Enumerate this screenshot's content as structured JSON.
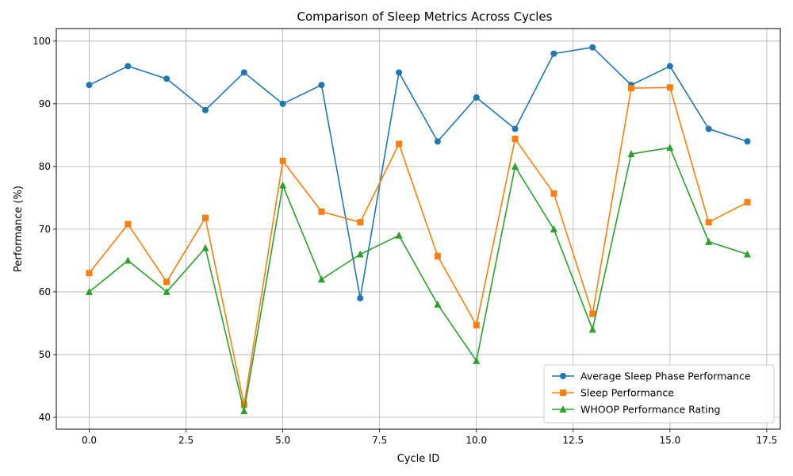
{
  "chart_data": {
    "type": "line",
    "title": "Comparison of Sleep Metrics Across Cycles",
    "xlabel": "Cycle ID",
    "ylabel": "Performance (%)",
    "xlim": [
      -0.85,
      17.85
    ],
    "ylim": [
      38.1,
      102.0
    ],
    "xticks": [
      0.0,
      2.5,
      5.0,
      7.5,
      10.0,
      12.5,
      15.0,
      17.5
    ],
    "xtick_labels": [
      "0.0",
      "2.5",
      "5.0",
      "7.5",
      "10.0",
      "12.5",
      "15.0",
      "17.5"
    ],
    "yticks": [
      40,
      50,
      60,
      70,
      80,
      90,
      100
    ],
    "ytick_labels": [
      "40",
      "50",
      "60",
      "70",
      "80",
      "90",
      "100"
    ],
    "grid": true,
    "legend_position": "bottom-right",
    "x": [
      0,
      1,
      2,
      3,
      4,
      5,
      6,
      7,
      8,
      9,
      10,
      11,
      12,
      13,
      14,
      15,
      16,
      17
    ],
    "series": [
      {
        "name": "Average Sleep Phase Performance",
        "color": "#1f77b4",
        "marker": "circle",
        "values": [
          93,
          96,
          94,
          89,
          95,
          90,
          93,
          59,
          95,
          84,
          91,
          86,
          98,
          99,
          93,
          96,
          86,
          84
        ]
      },
      {
        "name": "Sleep Performance",
        "color": "#ff7f0e",
        "marker": "square",
        "values": [
          63.0,
          70.8,
          61.6,
          71.8,
          42.0,
          80.9,
          72.8,
          71.1,
          83.6,
          65.7,
          54.7,
          84.4,
          75.7,
          56.5,
          92.5,
          92.6,
          71.1,
          74.3
        ]
      },
      {
        "name": "WHOOP Performance Rating",
        "color": "#2ca02c",
        "marker": "triangle",
        "values": [
          60,
          65,
          60,
          67,
          41,
          77,
          62,
          66,
          69,
          58,
          49,
          80,
          70,
          54,
          82,
          83,
          68,
          66
        ]
      }
    ]
  }
}
